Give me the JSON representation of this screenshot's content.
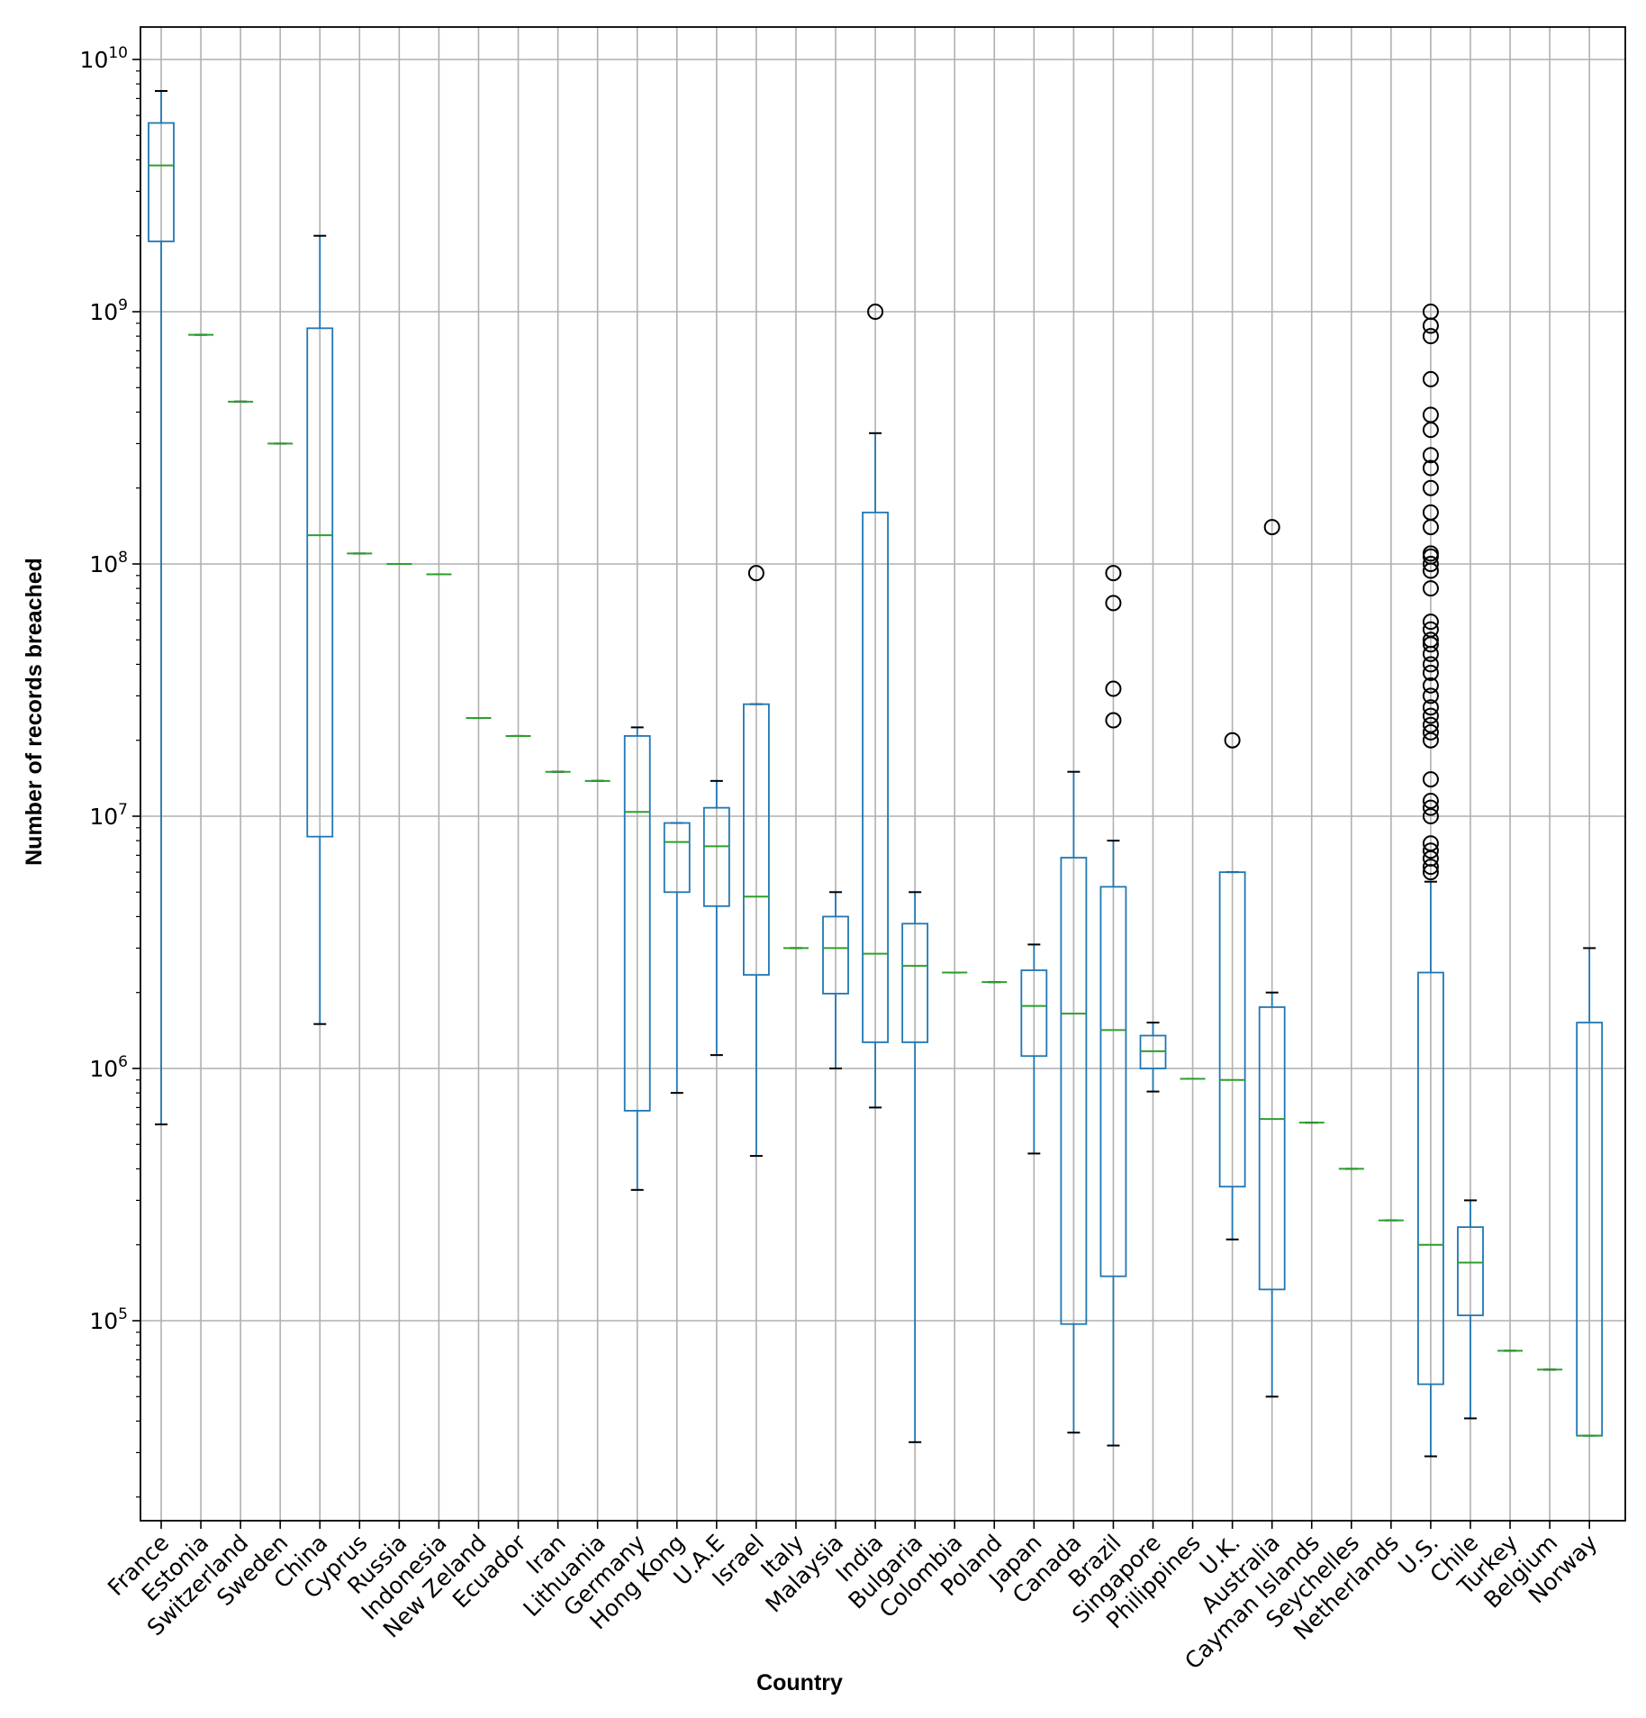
{
  "chart_data": {
    "type": "box",
    "xlabel": "Country",
    "ylabel": "Number of records breached",
    "yscale": "log",
    "ylim": [
      16000,
      13000000000
    ],
    "yticks": [
      {
        "value": 100000,
        "base": "10",
        "exp": "5"
      },
      {
        "value": 1000000,
        "base": "10",
        "exp": "6"
      },
      {
        "value": 10000000,
        "base": "10",
        "exp": "7"
      },
      {
        "value": 100000000,
        "base": "10",
        "exp": "8"
      },
      {
        "value": 1000000000,
        "base": "10",
        "exp": "9"
      },
      {
        "value": 10000000000,
        "base": "10",
        "exp": "10"
      }
    ],
    "grid": true,
    "colors": {
      "box": "#1f77b4",
      "median": "#2ca02c",
      "flier": "#000000",
      "grid": "#b0b0b0"
    },
    "categories": [
      "France",
      "Estonia",
      "Switzerland",
      "Sweden",
      "China",
      "Cyprus",
      "Russia",
      "Indonesia",
      "New Zeland",
      "Ecuador",
      "Iran",
      "Lithuania",
      "Germany",
      "Hong Kong",
      "U.A.E",
      "Israel",
      "Italy",
      "Malaysia",
      "India",
      "Bulgaria",
      "Colombia",
      "Poland",
      "Japan",
      "Canada",
      "Brazil",
      "Singapore",
      "Philippines",
      "U.K.",
      "Australia",
      "Cayman Islands",
      "Seychelles",
      "Netherlands",
      "U.S.",
      "Chile",
      "Turkey",
      "Belgium",
      "Norway"
    ],
    "boxes": [
      {
        "whislo": 600000,
        "q1": 1900000000,
        "med": 3800000000,
        "q3": 5600000000,
        "whishi": 7500000000,
        "fliers": []
      },
      {
        "whislo": 810000000,
        "q1": 810000000,
        "med": 810000000,
        "q3": 810000000,
        "whishi": 810000000,
        "fliers": []
      },
      {
        "whislo": 440000000,
        "q1": 440000000,
        "med": 440000000,
        "q3": 440000000,
        "whishi": 440000000,
        "fliers": []
      },
      {
        "whislo": 300000000,
        "q1": 300000000,
        "med": 300000000,
        "q3": 300000000,
        "whishi": 300000000,
        "fliers": []
      },
      {
        "whislo": 1500000,
        "q1": 8300000,
        "med": 130000000,
        "q3": 860000000,
        "whishi": 2000000000,
        "fliers": []
      },
      {
        "whislo": 110000000,
        "q1": 110000000,
        "med": 110000000,
        "q3": 110000000,
        "whishi": 110000000,
        "fliers": []
      },
      {
        "whislo": 100000000,
        "q1": 100000000,
        "med": 100000000,
        "q3": 100000000,
        "whishi": 100000000,
        "fliers": []
      },
      {
        "whislo": 91000000,
        "q1": 91000000,
        "med": 91000000,
        "q3": 91000000,
        "whishi": 91000000,
        "fliers": []
      },
      {
        "whislo": 24500000,
        "q1": 24500000,
        "med": 24500000,
        "q3": 24500000,
        "whishi": 24500000,
        "fliers": []
      },
      {
        "whislo": 20800000,
        "q1": 20800000,
        "med": 20800000,
        "q3": 20800000,
        "whishi": 20800000,
        "fliers": []
      },
      {
        "whislo": 15000000,
        "q1": 15000000,
        "med": 15000000,
        "q3": 15000000,
        "whishi": 15000000,
        "fliers": []
      },
      {
        "whislo": 13800000,
        "q1": 13800000,
        "med": 13800000,
        "q3": 13800000,
        "whishi": 13800000,
        "fliers": []
      },
      {
        "whislo": 330000,
        "q1": 680000,
        "med": 10400000,
        "q3": 20800000,
        "whishi": 22500000,
        "fliers": []
      },
      {
        "whislo": 800000,
        "q1": 5000000,
        "med": 7900000,
        "q3": 9400000,
        "whishi": 9400000,
        "fliers": []
      },
      {
        "whislo": 1130000,
        "q1": 4400000,
        "med": 7600000,
        "q3": 10800000,
        "whishi": 13800000,
        "fliers": []
      },
      {
        "whislo": 450000,
        "q1": 2350000,
        "med": 4800000,
        "q3": 27800000,
        "whishi": 27800000,
        "fliers": [
          92000000
        ]
      },
      {
        "whislo": 3000000,
        "q1": 3000000,
        "med": 3000000,
        "q3": 3000000,
        "whishi": 3000000,
        "fliers": []
      },
      {
        "whislo": 1000000,
        "q1": 1980000,
        "med": 3000000,
        "q3": 4000000,
        "whishi": 5000000,
        "fliers": []
      },
      {
        "whislo": 700000,
        "q1": 1270000,
        "med": 2850000,
        "q3": 160000000,
        "whishi": 330000000,
        "fliers": [
          1000000000
        ]
      },
      {
        "whislo": 33000,
        "q1": 1270000,
        "med": 2550000,
        "q3": 3750000,
        "whishi": 5000000,
        "fliers": []
      },
      {
        "whislo": 2400000,
        "q1": 2400000,
        "med": 2400000,
        "q3": 2400000,
        "whishi": 2400000,
        "fliers": []
      },
      {
        "whislo": 2200000,
        "q1": 2200000,
        "med": 2200000,
        "q3": 2200000,
        "whishi": 2200000,
        "fliers": []
      },
      {
        "whislo": 460000,
        "q1": 1120000,
        "med": 1770000,
        "q3": 2450000,
        "whishi": 3100000,
        "fliers": []
      },
      {
        "whislo": 36000,
        "q1": 97000,
        "med": 1650000,
        "q3": 6850000,
        "whishi": 15000000,
        "fliers": []
      },
      {
        "whislo": 32000,
        "q1": 150000,
        "med": 1420000,
        "q3": 5250000,
        "whishi": 8000000,
        "fliers": [
          24000000,
          32000000,
          70000000,
          92000000
        ]
      },
      {
        "whislo": 810000,
        "q1": 1000000,
        "med": 1170000,
        "q3": 1350000,
        "whishi": 1520000,
        "fliers": []
      },
      {
        "whislo": 910000,
        "q1": 910000,
        "med": 910000,
        "q3": 910000,
        "whishi": 910000,
        "fliers": []
      },
      {
        "whislo": 210000,
        "q1": 340000,
        "med": 900000,
        "q3": 6000000,
        "whishi": 6000000,
        "fliers": [
          20000000
        ]
      },
      {
        "whislo": 50000,
        "q1": 133000,
        "med": 630000,
        "q3": 1750000,
        "whishi": 2000000,
        "fliers": [
          140000000
        ]
      },
      {
        "whislo": 610000,
        "q1": 610000,
        "med": 610000,
        "q3": 610000,
        "whishi": 610000,
        "fliers": []
      },
      {
        "whislo": 400000,
        "q1": 400000,
        "med": 400000,
        "q3": 400000,
        "whishi": 400000,
        "fliers": []
      },
      {
        "whislo": 250000,
        "q1": 250000,
        "med": 250000,
        "q3": 250000,
        "whishi": 250000,
        "fliers": []
      },
      {
        "whislo": 29000,
        "q1": 56000,
        "med": 200000,
        "q3": 2400000,
        "whishi": 5500000,
        "fliers": [
          6000000,
          6300000,
          6800000,
          7300000,
          7800000,
          10000000,
          10800000,
          11500000,
          14000000,
          20000000,
          21500000,
          23000000,
          25000000,
          27000000,
          30000000,
          33000000,
          37000000,
          40000000,
          44000000,
          48000000,
          50000000,
          55000000,
          59000000,
          80000000,
          94000000,
          100000000,
          107000000,
          110000000,
          140000000,
          160000000,
          200000000,
          240000000,
          270000000,
          340000000,
          390000000,
          540000000,
          800000000,
          880000000,
          1000000000
        ]
      },
      {
        "whislo": 41000,
        "q1": 105000,
        "med": 170000,
        "q3": 235000,
        "whishi": 300000,
        "fliers": []
      },
      {
        "whislo": 76000,
        "q1": 76000,
        "med": 76000,
        "q3": 76000,
        "whishi": 76000,
        "fliers": []
      },
      {
        "whislo": 64000,
        "q1": 64000,
        "med": 64000,
        "q3": 64000,
        "whishi": 64000,
        "fliers": []
      },
      {
        "whislo": 35000,
        "q1": 35000,
        "med": 35000,
        "q3": 1520000,
        "whishi": 3000000,
        "fliers": []
      }
    ]
  }
}
